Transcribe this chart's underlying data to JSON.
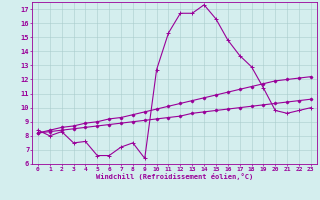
{
  "bg_color": "#d4eeee",
  "grid_color": "#aacccc",
  "line_color": "#990099",
  "xlabel": "Windchill (Refroidissement éolien,°C)",
  "ylim": [
    6,
    17.5
  ],
  "xlim": [
    -0.5,
    23.5
  ],
  "yticks": [
    6,
    7,
    8,
    9,
    10,
    11,
    12,
    13,
    14,
    15,
    16,
    17
  ],
  "xticks": [
    0,
    1,
    2,
    3,
    4,
    5,
    6,
    7,
    8,
    9,
    10,
    11,
    12,
    13,
    14,
    15,
    16,
    17,
    18,
    19,
    20,
    21,
    22,
    23
  ],
  "series": [
    {
      "x": [
        0,
        1,
        2,
        3,
        4,
        5,
        6,
        7,
        8,
        9,
        10,
        11,
        12,
        13,
        14,
        15,
        16,
        17,
        18,
        19,
        20,
        21,
        22,
        23
      ],
      "y": [
        8.4,
        8.0,
        8.3,
        7.5,
        7.6,
        6.6,
        6.6,
        7.2,
        7.5,
        6.4,
        12.7,
        15.3,
        16.7,
        16.7,
        17.3,
        16.3,
        14.8,
        13.7,
        12.9,
        11.4,
        9.8,
        9.6,
        9.8,
        10.0
      ],
      "marker": "+",
      "markersize": 3,
      "linewidth": 0.8
    },
    {
      "x": [
        0,
        1,
        2,
        3,
        4,
        5,
        6,
        7,
        8,
        9,
        10,
        11,
        12,
        13,
        14,
        15,
        16,
        17,
        18,
        19,
        20,
        21,
        22,
        23
      ],
      "y": [
        8.2,
        8.3,
        8.4,
        8.5,
        8.6,
        8.7,
        8.8,
        8.9,
        9.0,
        9.1,
        9.2,
        9.3,
        9.4,
        9.6,
        9.7,
        9.8,
        9.9,
        10.0,
        10.1,
        10.2,
        10.3,
        10.4,
        10.5,
        10.6
      ],
      "marker": "D",
      "markersize": 1.5,
      "linewidth": 0.8
    },
    {
      "x": [
        0,
        1,
        2,
        3,
        4,
        5,
        6,
        7,
        8,
        9,
        10,
        11,
        12,
        13,
        14,
        15,
        16,
        17,
        18,
        19,
        20,
        21,
        22,
        23
      ],
      "y": [
        8.2,
        8.4,
        8.6,
        8.7,
        8.9,
        9.0,
        9.2,
        9.3,
        9.5,
        9.7,
        9.9,
        10.1,
        10.3,
        10.5,
        10.7,
        10.9,
        11.1,
        11.3,
        11.5,
        11.7,
        11.9,
        12.0,
        12.1,
        12.2
      ],
      "marker": "D",
      "markersize": 1.5,
      "linewidth": 0.8
    }
  ]
}
